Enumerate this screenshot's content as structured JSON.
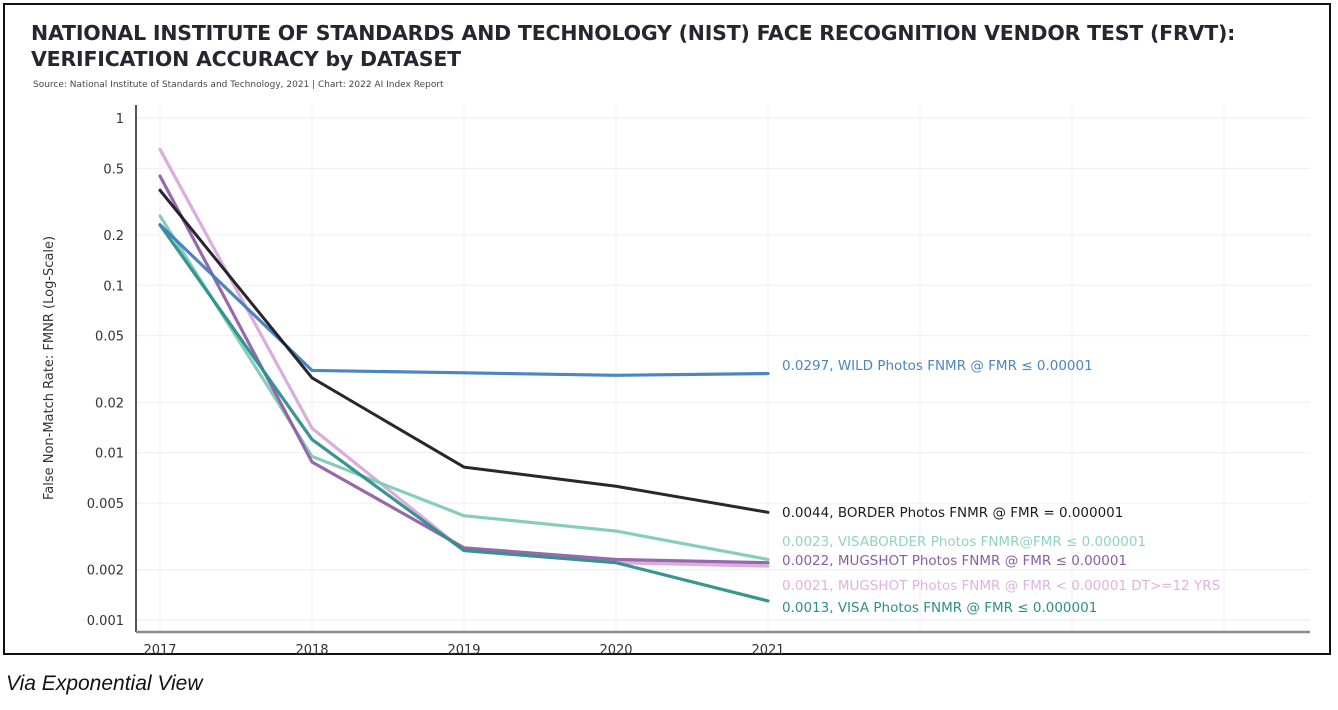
{
  "caption": "Via Exponential View",
  "chart_data": {
    "type": "line",
    "title": "NATIONAL INSTITUTE OF STANDARDS AND TECHNOLOGY (NIST) FACE RECOGNITION VENDOR TEST (FRVT):\nVERIFICATION ACCURACY by DATASET",
    "subtitle": "Source: National Institute of Standards and Technology, 2021 | Chart: 2022 AI Index Report",
    "xlabel": "",
    "ylabel": "False Non-Match Rate: FMNR (Log-Scale)",
    "yscale": "log",
    "ylim": [
      0.001,
      1
    ],
    "yticks": [
      1,
      0.5,
      0.2,
      0.1,
      0.05,
      0.02,
      0.01,
      0.005,
      0.002,
      0.001
    ],
    "ytick_labels": [
      "1",
      "0.5",
      "0.2",
      "0.1",
      "0.05",
      "0.02",
      "0.01",
      "0.005",
      "0.002",
      "0.001"
    ],
    "x": [
      2017,
      2018,
      2019,
      2020,
      2021
    ],
    "x_labels": [
      "2017",
      "2018",
      "2019",
      "2020",
      "2021"
    ],
    "grid": true,
    "legend": "end-labels-right",
    "series": [
      {
        "name": "WILD Photos FNMR @ FMR ≤ 0.00001",
        "label": "0.0297, WILD Photos FNMR @ FMR ≤ 0.00001",
        "color": "#3f7fbf",
        "values": [
          0.23,
          0.031,
          0.03,
          0.029,
          0.0297
        ]
      },
      {
        "name": "BORDER Photos FNMR @ FMR = 0.000001",
        "label": "0.0044, BORDER Photos FNMR @ FMR = 0.000001",
        "color": "#1e1a22",
        "values": [
          0.37,
          0.028,
          0.0082,
          0.0063,
          0.0044
        ]
      },
      {
        "name": "VISABORDER Photos FNMR@FMR ≤ 0.000001",
        "label": "0.0023, VISABORDER Photos FNMR@FMR ≤ 0.000001",
        "color": "#7fcbb6",
        "values": [
          0.26,
          0.0095,
          0.0042,
          0.0034,
          0.0023
        ]
      },
      {
        "name": "MUGSHOT Photos FNMR @ FMR ≤ 0.00001",
        "label": "0.0022, MUGSHOT Photos FNMR @ FMR ≤ 0.00001",
        "color": "#9160a8",
        "values": [
          0.45,
          0.0088,
          0.0027,
          0.0023,
          0.0022
        ]
      },
      {
        "name": "MUGSHOT Photos FNMR @ FMR < 0.00001 DT>=12 YRS",
        "label": "0.0021, MUGSHOT Photos FNMR @ FMR < 0.00001 DT>=12 YRS",
        "color": "#dba8dc",
        "values": [
          0.65,
          0.014,
          0.0026,
          0.0022,
          0.0021
        ]
      },
      {
        "name": "VISA Photos FNMR @ FMR ≤ 0.000001",
        "label": "0.0013, VISA Photos FNMR @ FMR ≤ 0.000001",
        "color": "#2e8f8c",
        "values": [
          0.23,
          0.012,
          0.0026,
          0.0022,
          0.0013
        ]
      }
    ]
  }
}
